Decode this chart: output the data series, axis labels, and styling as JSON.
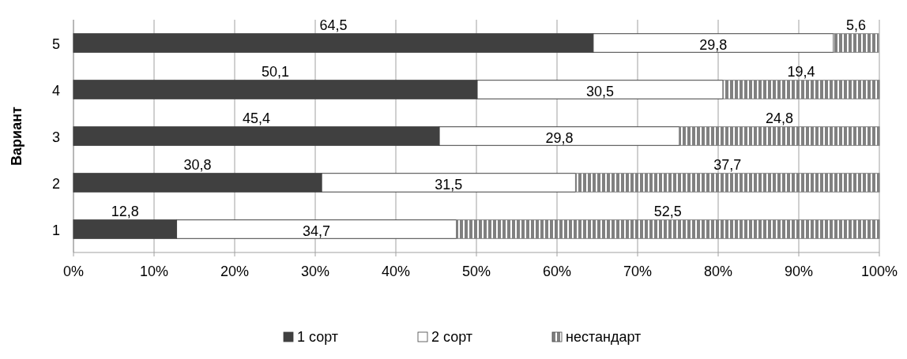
{
  "chart_data": {
    "type": "bar",
    "orientation": "horizontal",
    "stacked": true,
    "ylabel": "Вариант",
    "categories": [
      "5",
      "4",
      "3",
      "2",
      "1"
    ],
    "series": [
      {
        "name": "1 сорт",
        "color": "#404040",
        "values": [
          64.5,
          50.1,
          45.4,
          30.8,
          12.8
        ],
        "value_labels": [
          "64,5",
          "50,1",
          "45,4",
          "30,8",
          "12,8"
        ]
      },
      {
        "name": "2 сорт",
        "color": "#ffffff",
        "values": [
          29.8,
          30.5,
          29.8,
          31.5,
          34.7
        ],
        "value_labels": [
          "29,8",
          "30,5",
          "29,8",
          "31,5",
          "34,7"
        ]
      },
      {
        "name": "нестандарт",
        "color": "#808080",
        "values": [
          5.6,
          19.4,
          24.8,
          37.7,
          52.5
        ],
        "value_labels": [
          "5,6",
          "19,4",
          "24,8",
          "37,7",
          "52,5"
        ]
      }
    ],
    "xlim": [
      0,
      100
    ],
    "xticks": [
      {
        "value": 0,
        "label": "0%"
      },
      {
        "value": 10,
        "label": "10%"
      },
      {
        "value": 20,
        "label": "20%"
      },
      {
        "value": 30,
        "label": "30%"
      },
      {
        "value": 40,
        "label": "40%"
      },
      {
        "value": 50,
        "label": "50%"
      },
      {
        "value": 60,
        "label": "60%"
      },
      {
        "value": 70,
        "label": "70%"
      },
      {
        "value": 80,
        "label": "80%"
      },
      {
        "value": 90,
        "label": "90%"
      },
      {
        "value": 100,
        "label": "100%"
      }
    ],
    "grid": "x",
    "legend": "bottom"
  }
}
